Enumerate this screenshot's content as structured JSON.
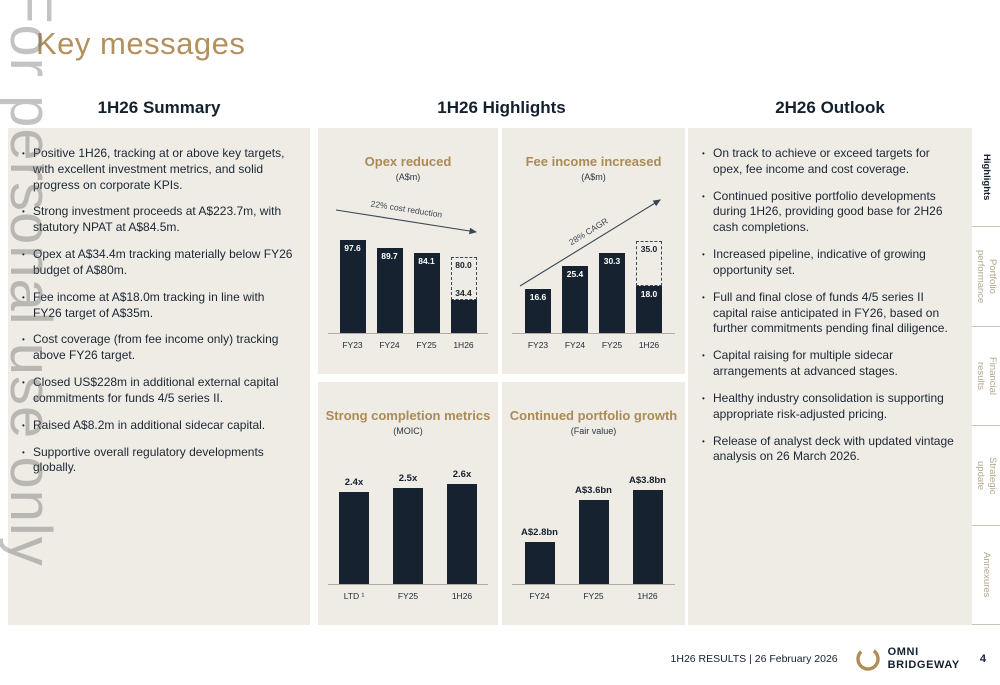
{
  "watermark": "For personal use only",
  "title": "Key messages",
  "columns": {
    "summary": {
      "header": "1H26 Summary",
      "bullets": [
        "Positive 1H26, tracking at or above key targets, with excellent investment metrics, and solid progress on corporate KPIs.",
        "Strong investment proceeds at A$223.7m, with statutory NPAT at A$84.5m.",
        "Opex at A$34.4m tracking materially below FY26 budget of A$80m.",
        "Fee income at A$18.0m tracking in line with FY26 target of A$35m.",
        "Cost coverage (from fee income only) tracking above FY26 target.",
        "Closed US$228m in additional external capital commitments for funds 4/5 series II.",
        "Raised A$8.2m in additional sidecar capital.",
        "Supportive overall regulatory developments globally."
      ]
    },
    "highlights": {
      "header": "1H26 Highlights"
    },
    "outlook": {
      "header": "2H26 Outlook",
      "bullets": [
        "On track to achieve or exceed targets for opex, fee income and cost coverage.",
        "Continued positive portfolio developments during 1H26, providing good base for 2H26 cash completions.",
        "Increased pipeline, indicative of growing opportunity set.",
        "Full and final close of funds 4/5 series II capital raise anticipated in FY26, based on further commitments pending final diligence.",
        "Capital raising for multiple sidecar arrangements at advanced stages.",
        "Healthy industry consolidation is supporting appropriate risk-adjusted pricing.",
        "Release of analyst deck with updated vintage analysis on 26 March 2026."
      ]
    }
  },
  "chart_data": [
    {
      "type": "bar",
      "title": "Opex reduced",
      "subtitle": "(A$m)",
      "categories": [
        "FY23",
        "FY24",
        "FY25",
        "1H26"
      ],
      "values": [
        97.6,
        89.7,
        84.1,
        34.4
      ],
      "value_labels": [
        "97.6",
        "89.7",
        "84.1",
        "34.4"
      ],
      "target_bar": {
        "index": 3,
        "value": 80.0,
        "label": "80.0"
      },
      "annotation": {
        "text": "22% cost reduction",
        "direction": "down"
      },
      "ylim": [
        0,
        105
      ],
      "label_position": "inside"
    },
    {
      "type": "bar",
      "title": "Fee income increased",
      "subtitle": "(A$m)",
      "categories": [
        "FY23",
        "FY24",
        "FY25",
        "1H26"
      ],
      "values": [
        16.6,
        25.4,
        30.3,
        18.0
      ],
      "value_labels": [
        "16.6",
        "25.4",
        "30.3",
        "18.0"
      ],
      "target_bar": {
        "index": 3,
        "value": 35.0,
        "label": "35.0"
      },
      "annotation": {
        "text": "28% CAGR",
        "direction": "up"
      },
      "ylim": [
        0,
        38
      ],
      "label_position": "inside"
    },
    {
      "type": "bar",
      "title": "Strong completion metrics",
      "subtitle": "(MOIC)",
      "categories": [
        "LTD ¹",
        "FY25",
        "1H26"
      ],
      "values": [
        2.4,
        2.5,
        2.6
      ],
      "value_labels": [
        "2.4x",
        "2.5x",
        "2.6x"
      ],
      "ylim": [
        0,
        3
      ],
      "label_position": "above"
    },
    {
      "type": "bar",
      "title": "Continued portfolio growth",
      "subtitle": "(Fair value)",
      "categories": [
        "FY24",
        "FY25",
        "1H26"
      ],
      "values": [
        2.8,
        3.6,
        3.8
      ],
      "value_labels": [
        "A$2.8bn",
        "A$3.6bn",
        "A$3.8bn"
      ],
      "ylim": [
        2,
        4.2
      ],
      "label_position": "above"
    }
  ],
  "sidebar": {
    "tabs": [
      {
        "label": "Highlights",
        "active": true
      },
      {
        "label": "Portfolio performance",
        "active": false
      },
      {
        "label": "Financial results",
        "active": false
      },
      {
        "label": "Strategic update",
        "active": false
      },
      {
        "label": "Annexures",
        "active": false
      }
    ]
  },
  "footer": {
    "text": "1H26 RESULTS | 26 February 2026",
    "logo_line1": "OMNI",
    "logo_line2": "BRIDGEWAY",
    "page_number": "4"
  },
  "colors": {
    "gold": "#b08d57",
    "navy": "#14202e",
    "panel_beige": "#efece5",
    "bar_navy": "#16222f",
    "inactive_tab": "#b3a68c",
    "watermark_gray": "#696969"
  }
}
